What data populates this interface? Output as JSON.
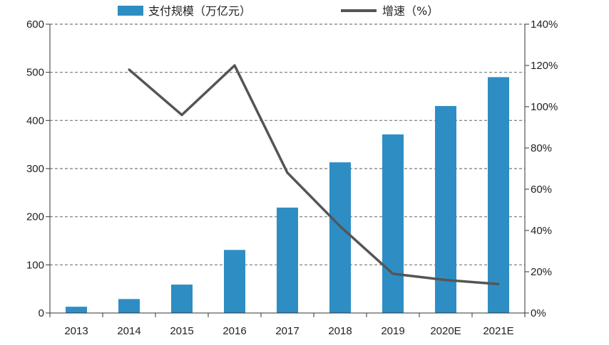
{
  "chart_data": {
    "type": "bar",
    "categories": [
      "2013",
      "2014",
      "2015",
      "2016",
      "2017",
      "2018",
      "2019",
      "2020E",
      "2021E"
    ],
    "series": [
      {
        "name": "支付规模（万亿元）",
        "type": "bar",
        "axis": "left",
        "color": "#2e8ec4",
        "values": [
          13,
          29,
          59,
          131,
          219,
          313,
          371,
          430,
          490
        ]
      },
      {
        "name": "增速（%）",
        "type": "line",
        "axis": "right",
        "color": "#555555",
        "values": [
          null,
          118,
          96,
          120,
          68,
          42,
          19,
          16,
          14
        ]
      }
    ],
    "y_left": {
      "min": 0,
      "max": 600,
      "ticks": [
        0,
        100,
        200,
        300,
        400,
        500,
        600
      ]
    },
    "y_right": {
      "min": 0,
      "max": 140,
      "ticks": [
        "0%",
        "20%",
        "40%",
        "60%",
        "80%",
        "100%",
        "120%",
        "140%"
      ]
    },
    "grid": true,
    "legend_position": "top"
  }
}
